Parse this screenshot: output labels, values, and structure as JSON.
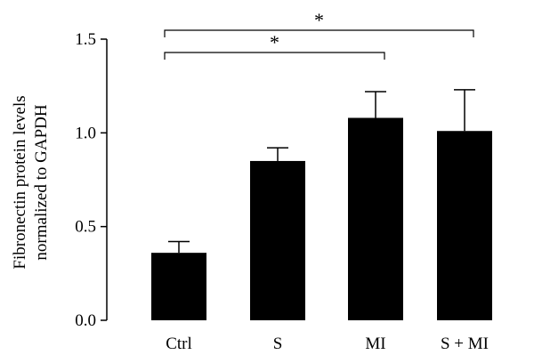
{
  "chart_data": {
    "type": "bar",
    "title": "",
    "xlabel": "",
    "ylabel_lines": [
      "Fibronectin protein levels",
      "normalized to GAPDH"
    ],
    "categories": [
      "Ctrl",
      "S",
      "MI",
      "S + MI"
    ],
    "values": [
      0.36,
      0.85,
      1.08,
      1.01
    ],
    "error_upper": [
      0.42,
      0.92,
      1.22,
      1.23
    ],
    "ylim": [
      0,
      1.5
    ],
    "yticks": [
      "0.0",
      "0.5",
      "1.0",
      "1.5"
    ],
    "ytick_values": [
      0,
      0.5,
      1.0,
      1.5
    ],
    "bar_color": "#000000",
    "grid": false,
    "significance": [
      {
        "from": 0,
        "to": 3,
        "label": "*"
      },
      {
        "from": 0,
        "to": 2,
        "label": "*"
      }
    ]
  }
}
